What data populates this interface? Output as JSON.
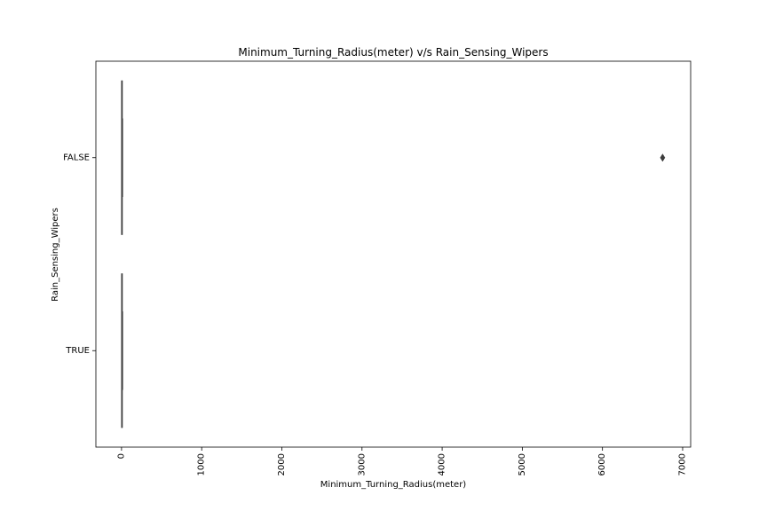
{
  "chart_data": {
    "type": "boxplot",
    "orientation": "horizontal",
    "title": "Minimum_Turning_Radius(meter) v/s Rain_Sensing_Wipers",
    "xlabel": "Minimum_Turning_Radius(meter)",
    "ylabel": "Rain_Sensing_Wipers",
    "xlim": [
      -320,
      7100
    ],
    "xticks": [
      0,
      1000,
      2000,
      3000,
      4000,
      5000,
      6000,
      7000
    ],
    "xtick_labels": [
      "0",
      "1000",
      "2000",
      "3000",
      "4000",
      "5000",
      "6000",
      "7000"
    ],
    "categories": [
      "FALSE",
      "TRUE"
    ],
    "boxes": [
      {
        "category": "FALSE",
        "whisker_low": 3.5,
        "q1": 4.9,
        "median": 5.1,
        "q3": 5.4,
        "whisker_high": 7.0,
        "outliers": [
          6750
        ]
      },
      {
        "category": "TRUE",
        "whisker_low": 3.8,
        "q1": 5.1,
        "median": 5.3,
        "q3": 5.6,
        "whisker_high": 7.1,
        "outliers": []
      }
    ],
    "grid": false,
    "colors": {
      "box": "#3d3d3d",
      "axes": "#000000"
    }
  }
}
